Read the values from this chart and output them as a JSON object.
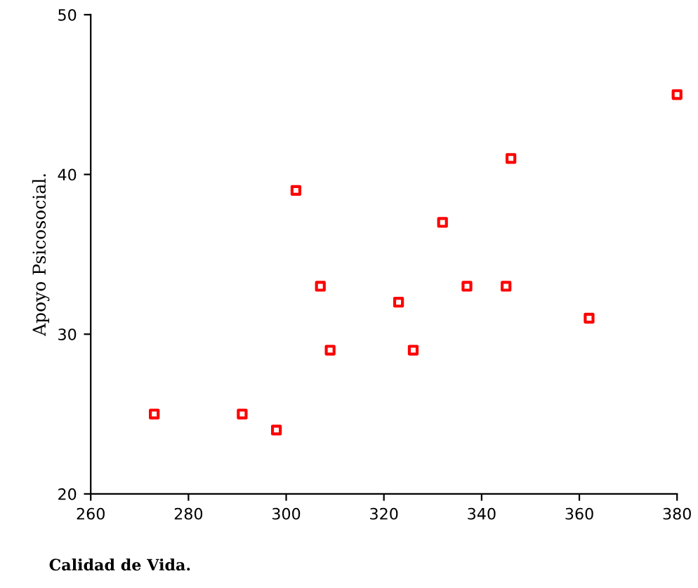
{
  "chart_data": {
    "type": "scatter",
    "xlabel": "Calidad de Vida.",
    "ylabel": "Apoyo Psicosocial.",
    "x": [
      273,
      291,
      298,
      302,
      307,
      309,
      323,
      326,
      332,
      337,
      345,
      346,
      362,
      380
    ],
    "series": [
      {
        "color": "#ff0000",
        "values": [
          25,
          25,
          24,
          39,
          33,
          29,
          32,
          29,
          37,
          33,
          33,
          41,
          31,
          45
        ]
      }
    ],
    "xlim": [
      260,
      380
    ],
    "xticks": [
      260,
      280,
      300,
      320,
      340,
      360,
      380
    ],
    "ylim": [
      20,
      50
    ],
    "yticks": [
      20,
      30,
      40,
      50
    ],
    "marker": "square",
    "grid": false,
    "legend": false
  }
}
